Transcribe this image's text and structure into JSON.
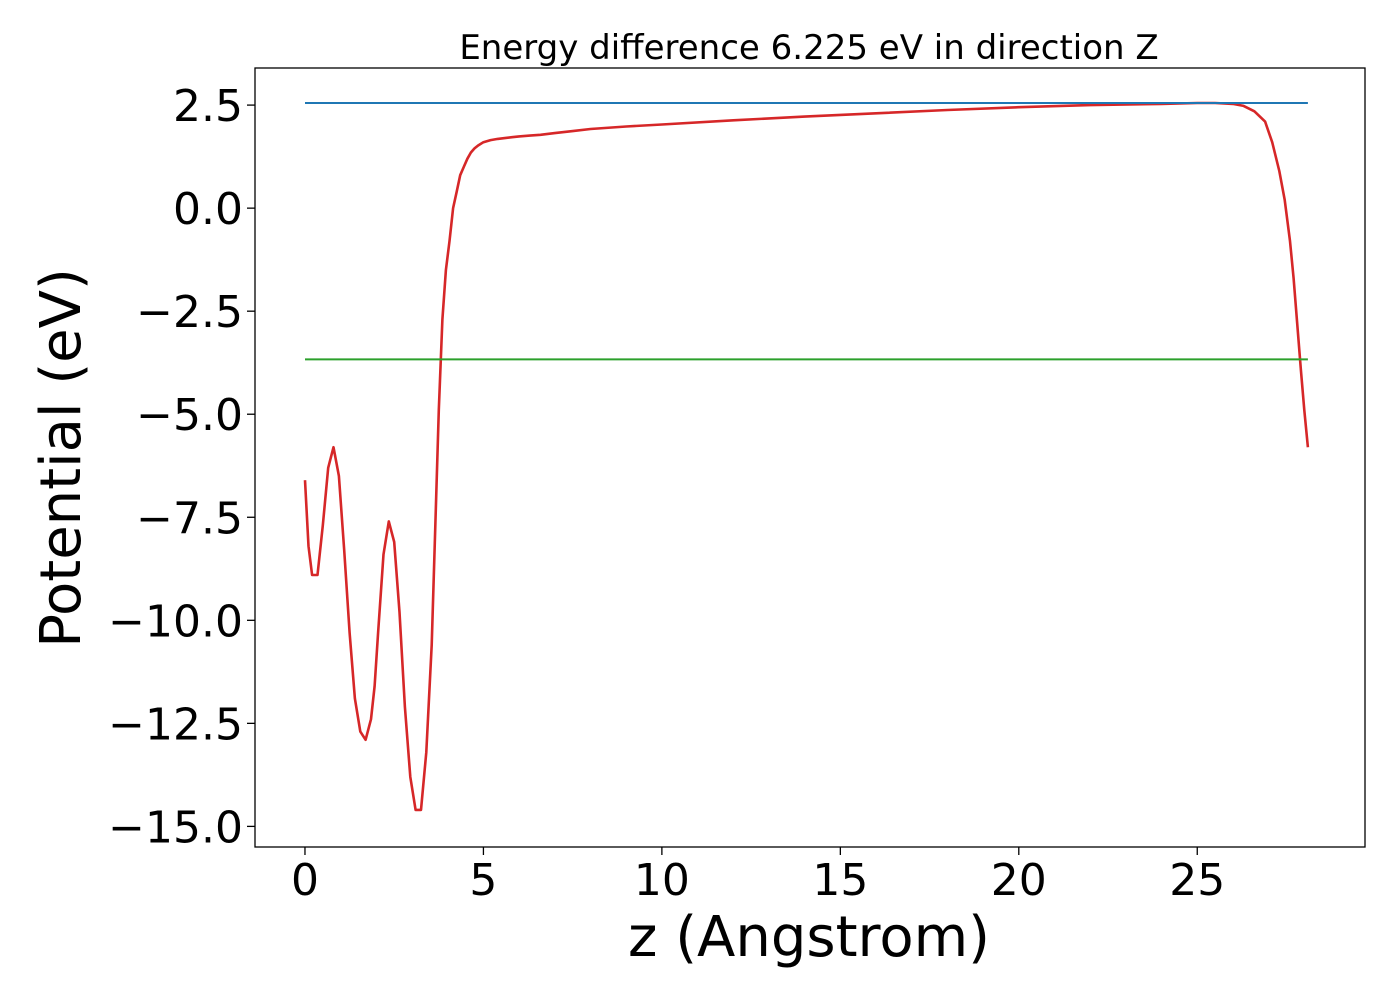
{
  "chart_data": {
    "type": "line",
    "title": "Energy difference 6.225 eV in direction Z",
    "xlabel": "z (Angstrom)",
    "ylabel": "Potential (eV)",
    "xlim": [
      -1.4,
      29.7
    ],
    "ylim": [
      -15.5,
      3.4
    ],
    "xticks": [
      0,
      5,
      10,
      15,
      20,
      25
    ],
    "xtick_labels": [
      "0",
      "5",
      "10",
      "15",
      "20",
      "25"
    ],
    "yticks": [
      2.5,
      0.0,
      -2.5,
      -5.0,
      -7.5,
      -10.0,
      -12.5,
      -15.0
    ],
    "ytick_labels": [
      "2.5",
      "0.0",
      "−2.5",
      "−5.0",
      "−7.5",
      "−10.0",
      "−12.5",
      "−15.0"
    ],
    "grid": false,
    "legend": "none",
    "series": [
      {
        "color": "#d62728",
        "x": [
          0,
          0.1,
          0.2,
          0.35,
          0.5,
          0.65,
          0.8,
          0.95,
          1.1,
          1.25,
          1.4,
          1.55,
          1.7,
          1.85,
          1.95,
          2.05,
          2.2,
          2.35,
          2.5,
          2.65,
          2.8,
          2.95,
          3.1,
          3.25,
          3.4,
          3.55,
          3.65,
          3.75,
          3.85,
          3.95,
          4.05,
          4.15,
          4.25,
          4.35,
          4.45,
          4.55,
          4.65,
          4.75,
          4.85,
          5.0,
          5.2,
          5.4,
          5.6,
          5.8,
          6.0,
          6.3,
          6.6,
          7.0,
          7.5,
          8.0,
          9.0,
          10.0,
          12.0,
          14.0,
          16.0,
          18.0,
          20.0,
          22.0,
          24.0,
          25.0,
          25.5,
          26.0,
          26.3,
          26.6,
          26.9,
          27.1,
          27.3,
          27.45,
          27.6,
          27.7,
          27.8,
          27.9,
          28.0,
          28.1
        ],
        "y": [
          -6.6,
          -8.2,
          -8.9,
          -8.9,
          -7.7,
          -6.3,
          -5.8,
          -6.5,
          -8.3,
          -10.3,
          -11.9,
          -12.7,
          -12.9,
          -12.4,
          -11.6,
          -10.3,
          -8.4,
          -7.6,
          -8.1,
          -9.8,
          -12.1,
          -13.8,
          -14.6,
          -14.6,
          -13.2,
          -10.6,
          -7.8,
          -4.9,
          -2.7,
          -1.5,
          -0.8,
          0.0,
          0.4,
          0.8,
          1.0,
          1.2,
          1.35,
          1.45,
          1.52,
          1.6,
          1.65,
          1.68,
          1.7,
          1.72,
          1.74,
          1.76,
          1.78,
          1.82,
          1.87,
          1.92,
          1.98,
          2.03,
          2.13,
          2.22,
          2.3,
          2.38,
          2.45,
          2.5,
          2.53,
          2.55,
          2.55,
          2.53,
          2.48,
          2.35,
          2.1,
          1.6,
          0.9,
          0.2,
          -0.8,
          -1.7,
          -2.8,
          -3.9,
          -4.9,
          -5.8
        ]
      },
      {
        "color": "#1f77b4",
        "x": [
          0,
          28.1
        ],
        "y": [
          2.55,
          2.55
        ]
      },
      {
        "color": "#2ca02c",
        "x": [
          0,
          28.1
        ],
        "y": [
          -3.67,
          -3.67
        ]
      }
    ]
  }
}
